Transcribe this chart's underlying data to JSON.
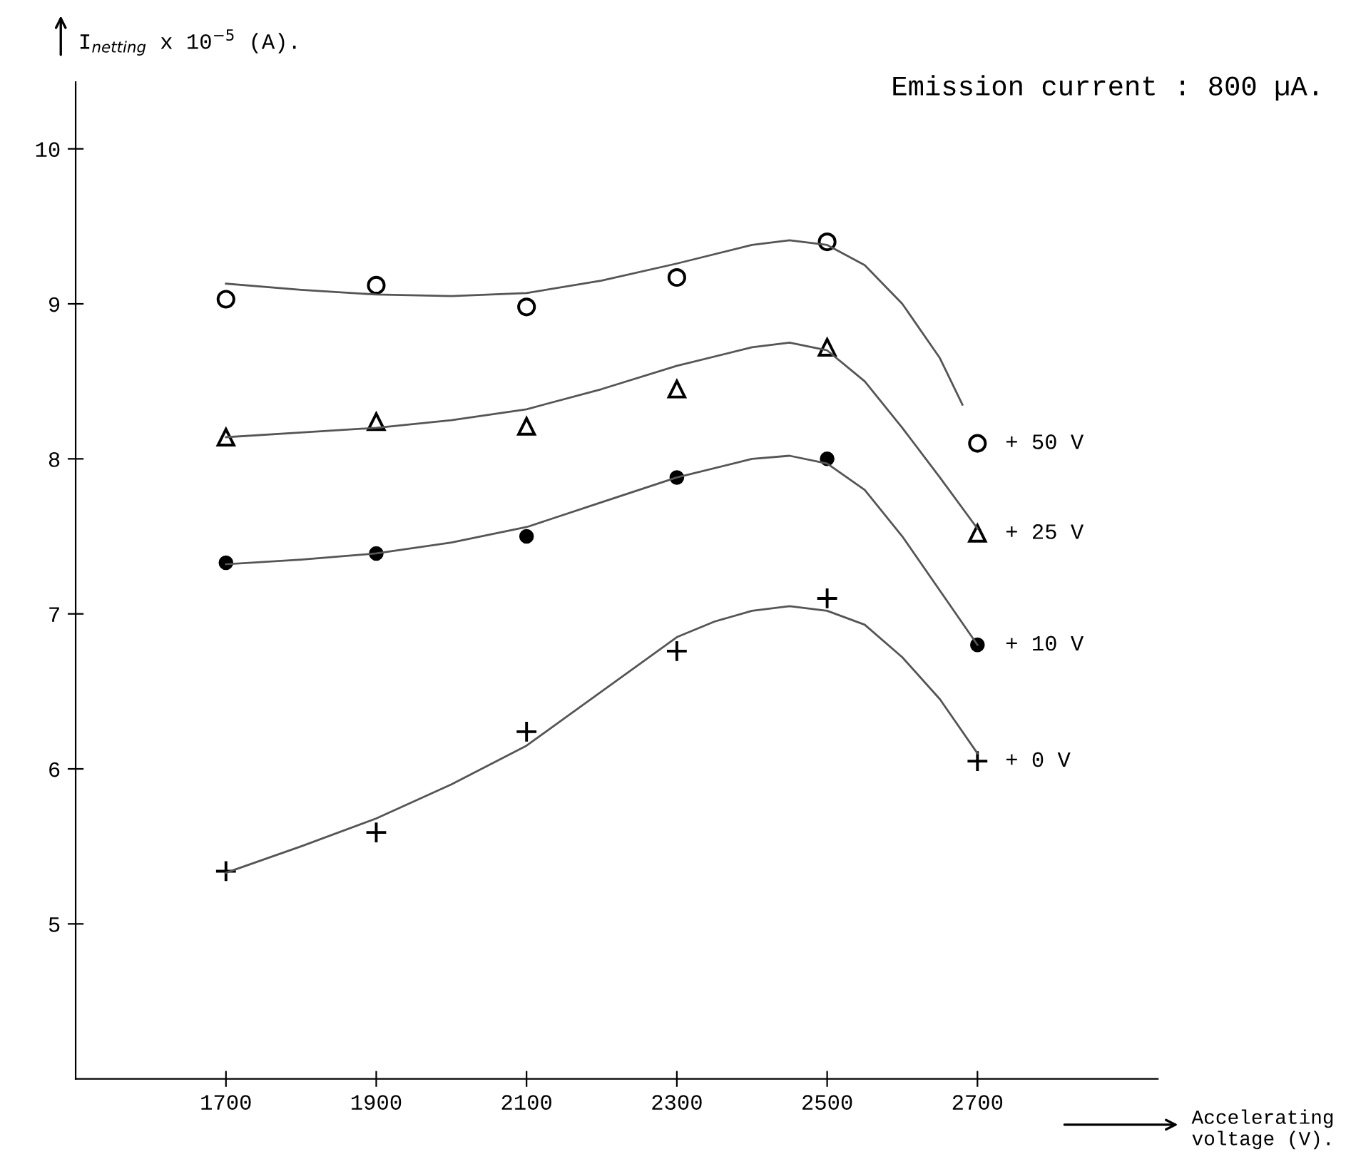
{
  "chart_data": {
    "type": "scatter",
    "annotations": [
      "Emission current : 800 µA."
    ],
    "xlabel": "Accelerating voltage (V).",
    "ylabel": "I$_{netting}$ x 10$^{−5}$ (A).",
    "x": [
      1700,
      1900,
      2100,
      2300,
      2500,
      2700
    ],
    "xlim": [
      1500,
      2940
    ],
    "xticks": [
      1700,
      1900,
      2100,
      2300,
      2500,
      2700
    ],
    "ylim": [
      4,
      10.43
    ],
    "yticks": [
      5,
      6,
      7,
      8,
      9,
      10
    ],
    "grid": false,
    "legend": false,
    "series": [
      {
        "name": "+ 50 V",
        "color": "#000000",
        "marker": "circle",
        "values": [
          9.03,
          9.12,
          8.98,
          9.17,
          9.4,
          8.1
        ]
      },
      {
        "name": "+ 25 V",
        "color": "#000000",
        "marker": "triangle",
        "values": [
          8.14,
          8.24,
          8.21,
          8.45,
          8.72,
          7.52
        ]
      },
      {
        "name": "+ 10 V",
        "color": "#000000",
        "marker": "circle",
        "values": [
          7.33,
          7.39,
          7.5,
          7.88,
          8.0,
          6.8
        ]
      },
      {
        "name": "+ 0 V",
        "color": "#000000",
        "marker": "cross",
        "values": [
          5.34,
          5.59,
          6.24,
          6.76,
          7.1,
          6.05
        ]
      },
      {
        "type": "line",
        "color": "#555555",
        "marker": "none",
        "x": [
          1700,
          1800,
          1900,
          2000,
          2100,
          2200,
          2300,
          2400,
          2450,
          2500,
          2550,
          2600,
          2650,
          2680
        ],
        "values": [
          9.13,
          9.09,
          9.06,
          9.05,
          9.07,
          9.15,
          9.26,
          9.38,
          9.41,
          9.38,
          9.25,
          9.0,
          8.65,
          8.35
        ]
      },
      {
        "type": "line",
        "color": "#555555",
        "marker": "none",
        "x": [
          1700,
          1800,
          1900,
          2000,
          2100,
          2200,
          2300,
          2400,
          2450,
          2500,
          2550,
          2600,
          2650,
          2700
        ],
        "values": [
          8.14,
          8.17,
          8.2,
          8.25,
          8.32,
          8.45,
          8.6,
          8.72,
          8.75,
          8.7,
          8.5,
          8.2,
          7.88,
          7.55
        ]
      },
      {
        "type": "line",
        "color": "#555555",
        "marker": "none",
        "x": [
          1700,
          1800,
          1900,
          2000,
          2100,
          2200,
          2300,
          2400,
          2450,
          2500,
          2550,
          2600,
          2650,
          2700
        ],
        "values": [
          7.32,
          7.35,
          7.39,
          7.46,
          7.56,
          7.72,
          7.88,
          8.0,
          8.02,
          7.97,
          7.8,
          7.5,
          7.15,
          6.8
        ]
      },
      {
        "type": "line",
        "color": "#555555",
        "marker": "none",
        "x": [
          1700,
          1800,
          1900,
          2000,
          2100,
          2200,
          2300,
          2350,
          2400,
          2450,
          2500,
          2550,
          2600,
          2650,
          2700
        ],
        "values": [
          5.33,
          5.5,
          5.68,
          5.9,
          6.15,
          6.5,
          6.85,
          6.95,
          7.02,
          7.05,
          7.02,
          6.93,
          6.72,
          6.45,
          6.1
        ]
      }
    ]
  }
}
